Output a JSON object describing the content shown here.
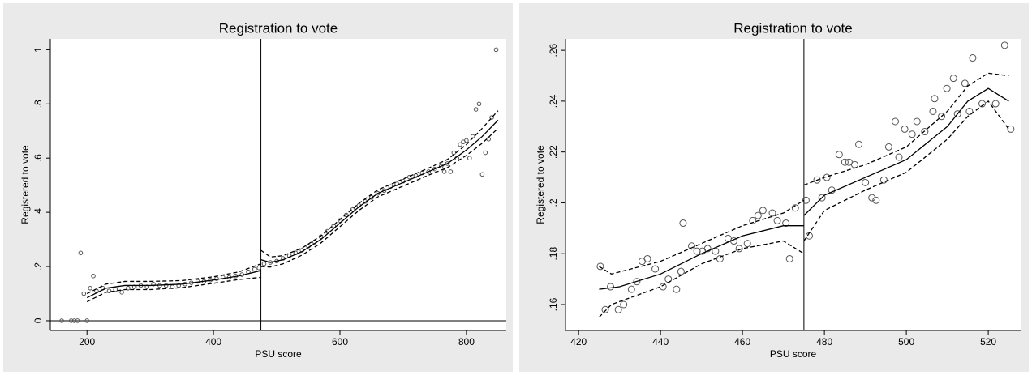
{
  "chart_data": [
    {
      "type": "scatter",
      "title": "Registration to vote",
      "xlabel": "PSU score",
      "ylabel": "Registered to vote",
      "xlim": [
        142,
        863
      ],
      "ylim": [
        -0.036,
        1.04
      ],
      "xticks": [
        200,
        400,
        600,
        800
      ],
      "yticks": [
        {
          "value": 0,
          "label": "0"
        },
        {
          "value": 0.2,
          "label": ".2"
        },
        {
          "value": 0.4,
          "label": ".4"
        },
        {
          "value": 0.6,
          "label": ".6"
        },
        {
          "value": 0.8,
          "label": ".8"
        },
        {
          "value": 1,
          "label": "1"
        }
      ],
      "xline": 475,
      "yline": 0,
      "series": [
        {
          "mode": "markers",
          "color": "#555555",
          "x": [
            160,
            175,
            180,
            185,
            200,
            190,
            195,
            205,
            210,
            215,
            225,
            235,
            245,
            255,
            265,
            275,
            285,
            295,
            305,
            315,
            325,
            335,
            345,
            355,
            365,
            375,
            385,
            395,
            405,
            415,
            425,
            435,
            445,
            455,
            465,
            472,
            480,
            490,
            500,
            510,
            520,
            530,
            540,
            550,
            560,
            570,
            580,
            590,
            600,
            610,
            620,
            630,
            640,
            650,
            660,
            670,
            680,
            690,
            700,
            710,
            720,
            730,
            740,
            750,
            760,
            765,
            770,
            775,
            780,
            785,
            790,
            795,
            800,
            805,
            810,
            815,
            820,
            825,
            830,
            835,
            840,
            847
          ],
          "values": [
            0,
            0,
            0,
            0,
            0,
            0.25,
            0.1,
            0.12,
            0.165,
            0.11,
            0.12,
            0.11,
            0.115,
            0.105,
            0.12,
            0.125,
            0.13,
            0.125,
            0.135,
            0.13,
            0.13,
            0.125,
            0.13,
            0.135,
            0.14,
            0.145,
            0.145,
            0.15,
            0.155,
            0.16,
            0.16,
            0.165,
            0.17,
            0.18,
            0.19,
            0.195,
            0.21,
            0.215,
            0.22,
            0.23,
            0.24,
            0.25,
            0.26,
            0.275,
            0.29,
            0.31,
            0.33,
            0.35,
            0.37,
            0.39,
            0.41,
            0.425,
            0.44,
            0.455,
            0.47,
            0.48,
            0.495,
            0.505,
            0.515,
            0.53,
            0.535,
            0.545,
            0.55,
            0.56,
            0.57,
            0.55,
            0.58,
            0.55,
            0.62,
            0.6,
            0.65,
            0.66,
            0.665,
            0.6,
            0.68,
            0.78,
            0.8,
            0.54,
            0.62,
            0.67,
            0.75,
            1.0
          ]
        },
        {
          "mode": "line",
          "color": "#000000",
          "dash": false,
          "x": [
            200,
            230,
            260,
            300,
            350,
            400,
            440,
            475
          ],
          "values": [
            0.085,
            0.12,
            0.13,
            0.13,
            0.135,
            0.15,
            0.165,
            0.185
          ]
        },
        {
          "mode": "line",
          "color": "#000000",
          "dash": true,
          "x": [
            200,
            230,
            260,
            300,
            350,
            400,
            440,
            475
          ],
          "values": [
            0.1,
            0.135,
            0.145,
            0.145,
            0.148,
            0.162,
            0.18,
            0.21
          ]
        },
        {
          "mode": "line",
          "color": "#000000",
          "dash": true,
          "x": [
            200,
            230,
            260,
            300,
            350,
            400,
            440,
            475
          ],
          "values": [
            0.07,
            0.105,
            0.115,
            0.115,
            0.122,
            0.138,
            0.152,
            0.16
          ]
        },
        {
          "mode": "line",
          "color": "#000000",
          "dash": false,
          "x": [
            475,
            490,
            510,
            540,
            570,
            600,
            630,
            660,
            700,
            740,
            770,
            800,
            825,
            850
          ],
          "values": [
            0.225,
            0.215,
            0.225,
            0.255,
            0.3,
            0.36,
            0.42,
            0.47,
            0.51,
            0.55,
            0.58,
            0.63,
            0.68,
            0.74
          ]
        },
        {
          "mode": "line",
          "color": "#000000",
          "dash": true,
          "x": [
            475,
            490,
            510,
            540,
            570,
            600,
            630,
            660,
            700,
            740,
            770,
            800,
            825,
            850
          ],
          "values": [
            0.26,
            0.235,
            0.24,
            0.268,
            0.313,
            0.373,
            0.433,
            0.483,
            0.523,
            0.563,
            0.595,
            0.65,
            0.71,
            0.775
          ]
        },
        {
          "mode": "line",
          "color": "#000000",
          "dash": true,
          "x": [
            475,
            490,
            510,
            540,
            570,
            600,
            630,
            660,
            700,
            740,
            770,
            800,
            825,
            850
          ],
          "values": [
            0.2,
            0.198,
            0.21,
            0.242,
            0.287,
            0.347,
            0.407,
            0.457,
            0.497,
            0.537,
            0.565,
            0.61,
            0.655,
            0.71
          ]
        }
      ]
    },
    {
      "type": "scatter",
      "title": "Registration to vote",
      "xlabel": "PSU score",
      "ylabel": "Registered to vote",
      "xlim": [
        416.8,
        527.9
      ],
      "ylim": [
        0.1498,
        0.2645
      ],
      "xticks": [
        420,
        440,
        460,
        480,
        500,
        520
      ],
      "yticks": [
        {
          "value": 0.16,
          "label": ".16"
        },
        {
          "value": 0.18,
          "label": ".18"
        },
        {
          "value": 0.2,
          "label": ".2"
        },
        {
          "value": 0.22,
          "label": ".22"
        },
        {
          "value": 0.24,
          "label": ".24"
        },
        {
          "value": 0.26,
          "label": ".26"
        }
      ],
      "xline": 475,
      "series": [
        {
          "mode": "markers",
          "color": "#555555",
          "x": [
            425.3,
            426.5,
            427.8,
            429.7,
            431,
            432.9,
            434.2,
            435.5,
            436.8,
            438.7,
            440.6,
            441.9,
            443.9,
            445,
            445.5,
            447.6,
            448.9,
            450.2,
            451.5,
            453.4,
            454.5,
            456.5,
            457.9,
            459.2,
            461.2,
            462.5,
            463.8,
            465,
            467.3,
            468.5,
            470.6,
            471.5,
            472.9,
            475.5,
            476.3,
            478.2,
            479.4,
            480.6,
            481.8,
            483.6,
            485,
            486,
            487.4,
            488.4,
            490,
            491.6,
            492.6,
            494.5,
            495.7,
            497.3,
            498.2,
            499.6,
            501.4,
            502.6,
            504.5,
            506.5,
            506.9,
            508.6,
            509.9,
            511.5,
            512.5,
            514.3,
            515.4,
            516.2,
            518.5,
            521.8,
            524,
            525.5
          ],
          "values": [
            0.175,
            0.158,
            0.167,
            0.158,
            0.16,
            0.166,
            0.169,
            0.177,
            0.178,
            0.174,
            0.167,
            0.17,
            0.166,
            0.173,
            0.192,
            0.183,
            0.181,
            0.181,
            0.182,
            0.181,
            0.178,
            0.186,
            0.185,
            0.182,
            0.184,
            0.193,
            0.195,
            0.197,
            0.196,
            0.193,
            0.192,
            0.178,
            0.198,
            0.201,
            0.187,
            0.209,
            0.202,
            0.21,
            0.205,
            0.219,
            0.216,
            0.216,
            0.215,
            0.223,
            0.208,
            0.202,
            0.201,
            0.209,
            0.222,
            0.232,
            0.218,
            0.229,
            0.227,
            0.232,
            0.228,
            0.236,
            0.241,
            0.234,
            0.245,
            0.249,
            0.235,
            0.247,
            0.236,
            0.257,
            0.239,
            0.239,
            0.262,
            0.229
          ]
        },
        {
          "mode": "line",
          "color": "#000000",
          "dash": false,
          "x": [
            425,
            430,
            440,
            450,
            460,
            470,
            475
          ],
          "values": [
            0.166,
            0.167,
            0.172,
            0.18,
            0.187,
            0.191,
            0.191
          ]
        },
        {
          "mode": "line",
          "color": "#000000",
          "dash": true,
          "x": [
            425,
            428,
            440,
            450,
            460,
            470,
            475
          ],
          "values": [
            0.175,
            0.172,
            0.177,
            0.184,
            0.191,
            0.196,
            0.201
          ]
        },
        {
          "mode": "line",
          "color": "#000000",
          "dash": true,
          "x": [
            425,
            428,
            440,
            450,
            460,
            470,
            475
          ],
          "values": [
            0.155,
            0.16,
            0.167,
            0.176,
            0.182,
            0.185,
            0.18
          ]
        },
        {
          "mode": "line",
          "color": "#000000",
          "dash": false,
          "x": [
            475,
            480,
            490,
            500,
            510,
            515,
            520,
            525
          ],
          "values": [
            0.195,
            0.203,
            0.21,
            0.217,
            0.23,
            0.24,
            0.245,
            0.24
          ]
        },
        {
          "mode": "line",
          "color": "#000000",
          "dash": true,
          "x": [
            475,
            480,
            490,
            500,
            510,
            515,
            520,
            525
          ],
          "values": [
            0.207,
            0.21,
            0.215,
            0.222,
            0.236,
            0.246,
            0.251,
            0.25
          ]
        },
        {
          "mode": "line",
          "color": "#000000",
          "dash": true,
          "x": [
            475,
            480,
            490,
            500,
            510,
            515,
            520,
            525
          ],
          "values": [
            0.185,
            0.197,
            0.205,
            0.212,
            0.225,
            0.234,
            0.24,
            0.229
          ]
        }
      ]
    }
  ]
}
